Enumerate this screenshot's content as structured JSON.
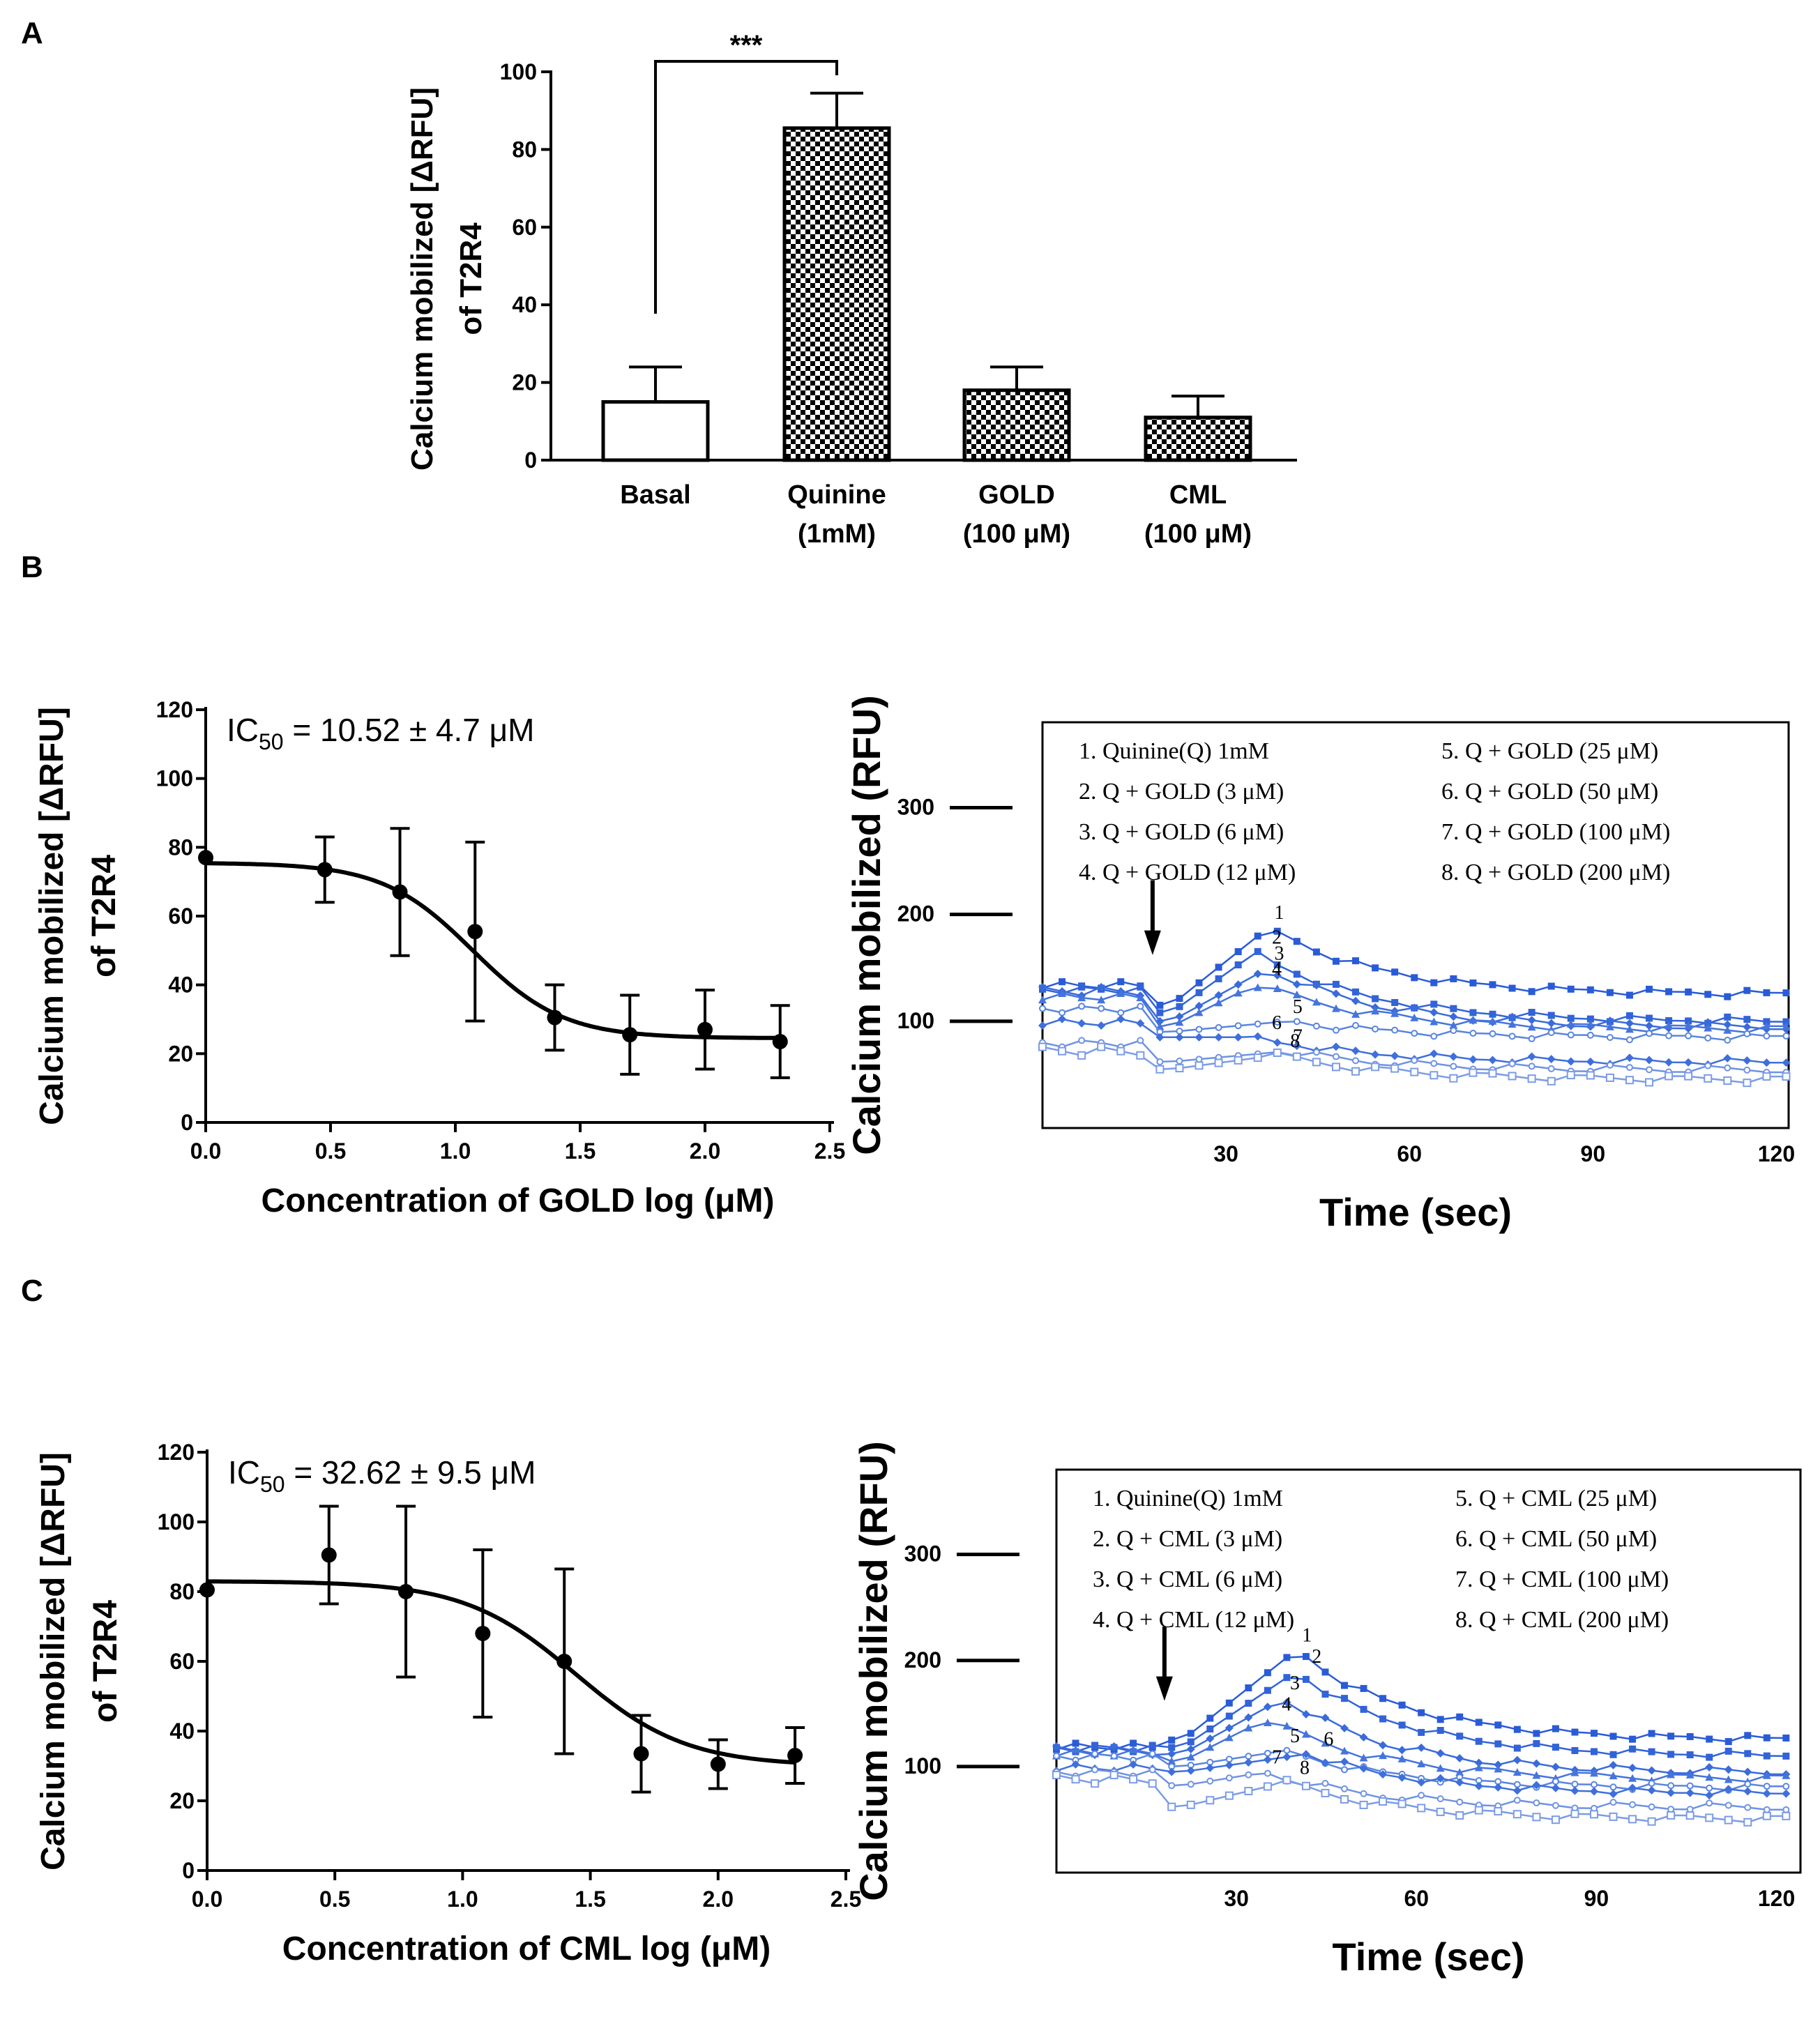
{
  "panels": {
    "a": "A",
    "b": "B",
    "c": "C"
  },
  "chart_data": [
    {
      "id": "A",
      "type": "bar",
      "ylabel_line1": "Calcium mobilized [ΔRFU]",
      "ylabel_line2": "of  T2R4",
      "ylim": [
        0,
        100
      ],
      "yticks": [
        0,
        20,
        40,
        60,
        80,
        100
      ],
      "categories": [
        {
          "line1": "Basal",
          "line2": ""
        },
        {
          "line1": "Quinine",
          "line2": "(1mM)"
        },
        {
          "line1": "GOLD",
          "line2": "(100 μM)"
        },
        {
          "line1": "CML",
          "line2": "(100 μM)"
        }
      ],
      "values": [
        15,
        85.5,
        18,
        11
      ],
      "errors": [
        9,
        9,
        6,
        5.5
      ],
      "fills": [
        "open",
        "checkered",
        "checkered",
        "checkered"
      ],
      "significance": {
        "from": 0,
        "to": 1,
        "label": "***"
      }
    },
    {
      "id": "B-left",
      "type": "scatter",
      "title": "IC50 = 10.52 ± 4.7 μM",
      "ic50_prefix": "IC",
      "ic50_sub": "50",
      "ic50_rest": " = 10.52 ± 4.7 μM",
      "xlabel": "Concentration of GOLD log (μM)",
      "ylabel_line1": "Calcium mobilized [ΔRFU]",
      "ylabel_line2": "of  T2R4",
      "xlim": [
        0,
        2.5
      ],
      "ylim": [
        0,
        120
      ],
      "xticks": [
        "0.0",
        "0.5",
        "1.0",
        "1.5",
        "2.0",
        "2.5"
      ],
      "yticks": [
        0,
        20,
        40,
        60,
        80,
        100,
        120
      ],
      "x": [
        0.0,
        0.477,
        0.778,
        1.079,
        1.398,
        1.699,
        2.0,
        2.301
      ],
      "y": [
        77,
        73.5,
        67,
        55.5,
        30.5,
        25.5,
        27,
        23.5
      ],
      "err": [
        0,
        9.5,
        18.5,
        26,
        9.5,
        11.5,
        11.5,
        10.5
      ],
      "fit": {
        "top": 75.5,
        "bottom": 24.5,
        "logIC50": 1.07,
        "hill": -2.4
      }
    },
    {
      "id": "B-right",
      "type": "line",
      "xlabel": "Time (sec)",
      "ylabel": "Calcium mobilized (RFU)",
      "xlim": [
        0,
        122
      ],
      "ylim": [
        0,
        380
      ],
      "xticks": [
        30,
        60,
        90,
        120
      ],
      "yticks": [
        100,
        200,
        300
      ],
      "arrow_time": 18,
      "legend": [
        "1. Quinine(Q) 1mM",
        "2. Q + GOLD (3 μM)",
        "3. Q + GOLD (6 μM)",
        "4. Q + GOLD (12 μM)",
        "5. Q + GOLD (25 μM)",
        "6. Q + GOLD (50 μM)",
        "7. Q + GOLD (100 μM)",
        "8. Q + GOLD (200 μM)"
      ],
      "series": [
        {
          "name": "1",
          "base": 135,
          "peak": 188,
          "end": 125,
          "dip": 115,
          "peak_t": 37
        },
        {
          "name": "2",
          "base": 130,
          "peak": 165,
          "end": 100,
          "dip": 108,
          "peak_t": 35
        },
        {
          "name": "3",
          "base": 128,
          "peak": 150,
          "end": 95,
          "dip": 100,
          "peak_t": 37
        },
        {
          "name": "4",
          "base": 122,
          "peak": 135,
          "end": 92,
          "dip": 95,
          "peak_t": 35
        },
        {
          "name": "5",
          "base": 110,
          "peak": 100,
          "end": 85,
          "dip": 90,
          "peak_t": 40
        },
        {
          "name": "6",
          "base": 100,
          "peak": 85,
          "end": 62,
          "dip": 85,
          "peak_t": 35
        },
        {
          "name": "7",
          "base": 80,
          "peak": 72,
          "end": 55,
          "dip": 62,
          "peak_t": 40
        },
        {
          "name": "8",
          "base": 72,
          "peak": 68,
          "end": 45,
          "dip": 55,
          "peak_t": 38
        }
      ]
    },
    {
      "id": "C-left",
      "type": "scatter",
      "title": "IC50 = 32.62 ± 9.5 μM",
      "ic50_prefix": "IC",
      "ic50_sub": "50",
      "ic50_rest": " = 32.62 ± 9.5 μM",
      "xlabel": "Concentration of CML log (μM)",
      "ylabel_line1": "Calcium mobilized [ΔRFU]",
      "ylabel_line2": "of  T2R4",
      "xlim": [
        0,
        2.5
      ],
      "ylim": [
        0,
        120
      ],
      "xticks": [
        "0.0",
        "0.5",
        "1.0",
        "1.5",
        "2.0",
        "2.5"
      ],
      "yticks": [
        0,
        20,
        40,
        60,
        80,
        100,
        120
      ],
      "x": [
        0.0,
        0.477,
        0.778,
        1.079,
        1.398,
        1.699,
        2.0,
        2.301
      ],
      "y": [
        80.5,
        90.5,
        80,
        68,
        60,
        33.5,
        30.5,
        33
      ],
      "err": [
        0,
        14,
        24.5,
        24,
        26.5,
        11,
        7,
        8
      ],
      "fit": {
        "top": 83,
        "bottom": 30,
        "logIC50": 1.44,
        "hill": -2.0
      }
    },
    {
      "id": "C-right",
      "type": "line",
      "xlabel": "Time (sec)",
      "ylabel": "Calcium mobilized (RFU)",
      "xlim": [
        0,
        124
      ],
      "ylim": [
        0,
        380
      ],
      "xticks": [
        30,
        60,
        90,
        120
      ],
      "yticks": [
        100,
        200,
        300
      ],
      "arrow_time": 18,
      "legend": [
        "1. Quinine(Q) 1mM",
        "2. Q + CML (3 μM)",
        "3. Q + CML (6 μM)",
        "4. Q + CML (12 μM)",
        "5. Q + CML (25 μM)",
        "6. Q + CML (50 μM)",
        "7. Q + CML (100 μM)",
        "8. Q + CML (200 μM)"
      ],
      "series": [
        {
          "name": "1",
          "base": 120,
          "peak": 210,
          "end": 125,
          "dip": 125,
          "peak_t": 40
        },
        {
          "name": "2",
          "base": 118,
          "peak": 190,
          "end": 110,
          "dip": 118,
          "peak_t": 40
        },
        {
          "name": "3",
          "base": 115,
          "peak": 165,
          "end": 95,
          "dip": 112,
          "peak_t": 38
        },
        {
          "name": "4",
          "base": 112,
          "peak": 145,
          "end": 88,
          "dip": 105,
          "peak_t": 35
        },
        {
          "name": "5",
          "base": 108,
          "peak": 115,
          "end": 80,
          "dip": 100,
          "peak_t": 38
        },
        {
          "name": "6",
          "base": 100,
          "peak": 112,
          "end": 75,
          "dip": 95,
          "peak_t": 42
        },
        {
          "name": "7",
          "base": 95,
          "peak": 95,
          "end": 62,
          "dip": 82,
          "peak_t": 35
        },
        {
          "name": "8",
          "base": 88,
          "peak": 85,
          "end": 50,
          "dip": 62,
          "peak_t": 38
        }
      ]
    }
  ]
}
